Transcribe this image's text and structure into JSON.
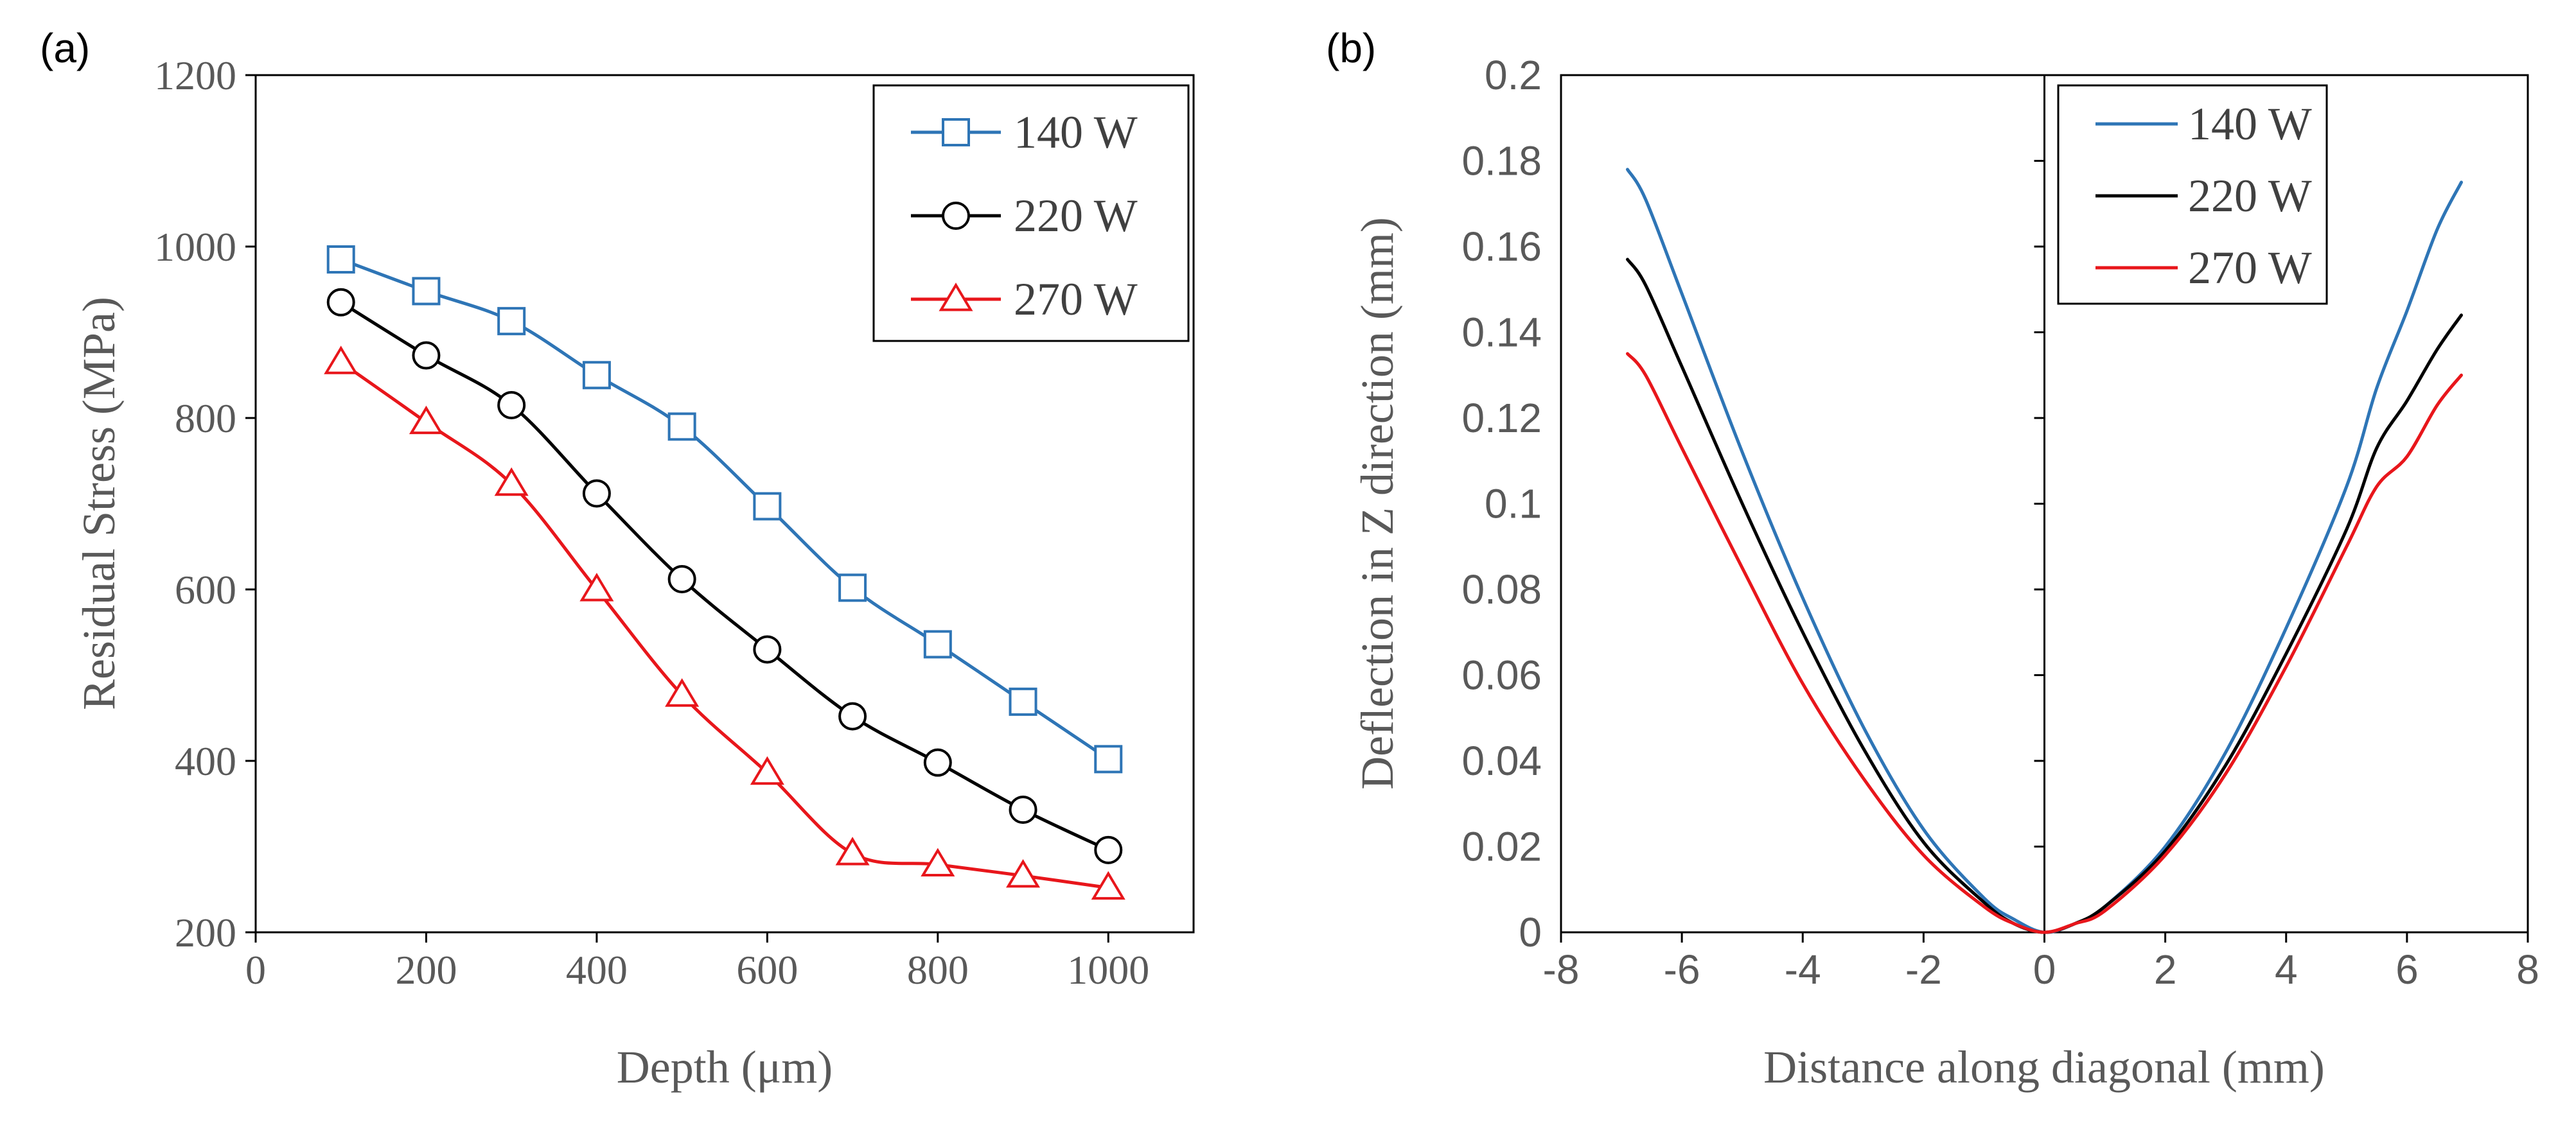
{
  "chart_data": [
    {
      "type": "line",
      "panel_label": "(a)",
      "xlabel": "Depth (μm)",
      "ylabel": "Residual Stress (MPa)",
      "xlim": [
        0,
        1100
      ],
      "ylim": [
        200,
        1200
      ],
      "x_ticks": [
        0,
        200,
        400,
        600,
        800,
        1000
      ],
      "x_tick_labels": [
        "0",
        "200",
        "400",
        "600",
        "800",
        "1000"
      ],
      "y_ticks": [
        200,
        400,
        600,
        800,
        1000,
        1200
      ],
      "y_tick_labels": [
        "200",
        "400",
        "600",
        "800",
        "1000",
        "1200"
      ],
      "grid": false,
      "legend_position": "top-right",
      "series": [
        {
          "name": "140 W",
          "color": "#2E75B6",
          "marker": "square",
          "x": [
            100,
            200,
            300,
            400,
            500,
            600,
            700,
            800,
            900,
            1000
          ],
          "values": [
            985,
            948,
            913,
            850,
            790,
            697,
            602,
            536,
            469,
            402
          ]
        },
        {
          "name": "220 W",
          "color": "#000000",
          "marker": "circle",
          "x": [
            100,
            200,
            300,
            400,
            500,
            600,
            700,
            800,
            900,
            1000
          ],
          "values": [
            935,
            873,
            815,
            712,
            612,
            530,
            452,
            398,
            343,
            296
          ]
        },
        {
          "name": "270 W",
          "color": "#E8161B",
          "marker": "triangle",
          "x": [
            100,
            200,
            300,
            400,
            500,
            600,
            700,
            800,
            900,
            1000
          ],
          "values": [
            865,
            795,
            723,
            600,
            477,
            386,
            292,
            279,
            266,
            252
          ]
        }
      ]
    },
    {
      "type": "line",
      "panel_label": "(b)",
      "xlabel": "Distance along diagonal (mm)",
      "ylabel": "Deflection in Z direction (mm)",
      "xlim": [
        -8,
        8
      ],
      "ylim": [
        0,
        0.2
      ],
      "x_ticks": [
        -8,
        -6,
        -4,
        -2,
        0,
        2,
        4,
        6,
        8
      ],
      "x_tick_labels": [
        "-8",
        "-6",
        "-4",
        "-2",
        "0",
        "2",
        "4",
        "6",
        "8"
      ],
      "y_ticks": [
        0,
        0.02,
        0.04,
        0.06,
        0.08,
        0.1,
        0.12,
        0.14,
        0.16,
        0.18,
        0.2
      ],
      "y_tick_labels": [
        "0",
        "0.02",
        "0.04",
        "0.06",
        "0.08",
        "0.1",
        "0.12",
        "0.14",
        "0.16",
        "0.18",
        "0.2"
      ],
      "grid": false,
      "legend_position": "top-left of right half",
      "series": [
        {
          "name": "140 W",
          "color": "#2E75B6",
          "x": [
            -6.9,
            -6.6,
            -6,
            -5,
            -4,
            -3,
            -2,
            -1,
            -0.5,
            0,
            0.5,
            1,
            2,
            3,
            4,
            5,
            5.5,
            6,
            6.5,
            6.9
          ],
          "values": [
            0.178,
            0.171,
            0.149,
            0.112,
            0.078,
            0.048,
            0.024,
            0.008,
            0.003,
            0,
            0.002,
            0.006,
            0.02,
            0.042,
            0.071,
            0.104,
            0.127,
            0.145,
            0.164,
            0.175
          ]
        },
        {
          "name": "220 W",
          "color": "#000000",
          "x": [
            -6.9,
            -6.6,
            -6,
            -5,
            -4,
            -3,
            -2,
            -1,
            -0.5,
            0,
            0.5,
            1,
            2,
            3,
            4,
            5,
            5.5,
            6,
            6.5,
            6.9
          ],
          "values": [
            0.157,
            0.151,
            0.132,
            0.1,
            0.07,
            0.043,
            0.021,
            0.007,
            0.002,
            0,
            0.002,
            0.006,
            0.019,
            0.039,
            0.065,
            0.094,
            0.113,
            0.124,
            0.136,
            0.144
          ]
        },
        {
          "name": "270 W",
          "color": "#E8161B",
          "x": [
            -6.9,
            -6.6,
            -6,
            -5,
            -4,
            -3,
            -2,
            -1,
            -0.5,
            0,
            0.5,
            1,
            2,
            3,
            4,
            5,
            5.5,
            6,
            6.5,
            6.9
          ],
          "values": [
            0.135,
            0.13,
            0.113,
            0.085,
            0.058,
            0.036,
            0.018,
            0.006,
            0.002,
            0,
            0.002,
            0.005,
            0.018,
            0.037,
            0.062,
            0.09,
            0.104,
            0.111,
            0.123,
            0.13
          ]
        }
      ]
    }
  ]
}
